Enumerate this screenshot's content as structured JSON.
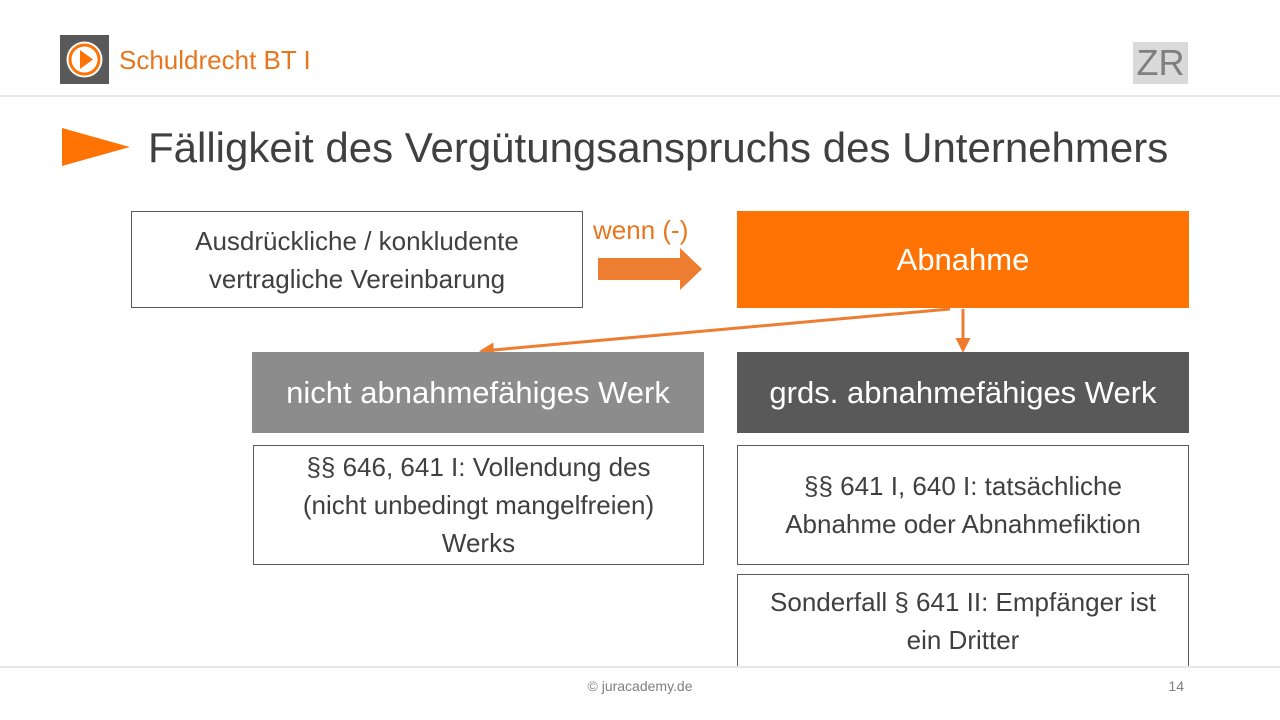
{
  "header": {
    "course_title": "Schuldrecht BT I",
    "badge": "ZR",
    "logo_icon": "play-circle-icon"
  },
  "slide": {
    "title": "Fälligkeit des Vergütungsanspruchs des Unternehmers"
  },
  "diagram": {
    "agreement_box": [
      "Ausdrückliche / konkludente",
      "vertragliche Vereinbarung"
    ],
    "connector_label": "wenn (-)",
    "acceptance_box": "Abnahme",
    "left_branch": {
      "heading": "nicht abnahmefähiges Werk",
      "detail": [
        "§§ 646, 641 I: Vollendung des",
        "(nicht unbedingt mangelfreien)",
        "Werks"
      ]
    },
    "right_branch": {
      "heading": "grds. abnahmefähiges Werk",
      "detail": [
        "§§ 641 I, 640 I: tatsächliche",
        "Abnahme oder Abnahmefiktion"
      ],
      "special_case": [
        "Sonderfall § 641 II: Empfänger ist",
        "ein Dritter"
      ]
    }
  },
  "footer": {
    "copyright": "© juracademy.de",
    "page_number": "14"
  },
  "colors": {
    "accent_orange": "#ff7304",
    "title_orange": "#e8761e",
    "dark_gray": "#595959",
    "mid_gray": "#8c8c8c",
    "text_gray": "#404040"
  }
}
